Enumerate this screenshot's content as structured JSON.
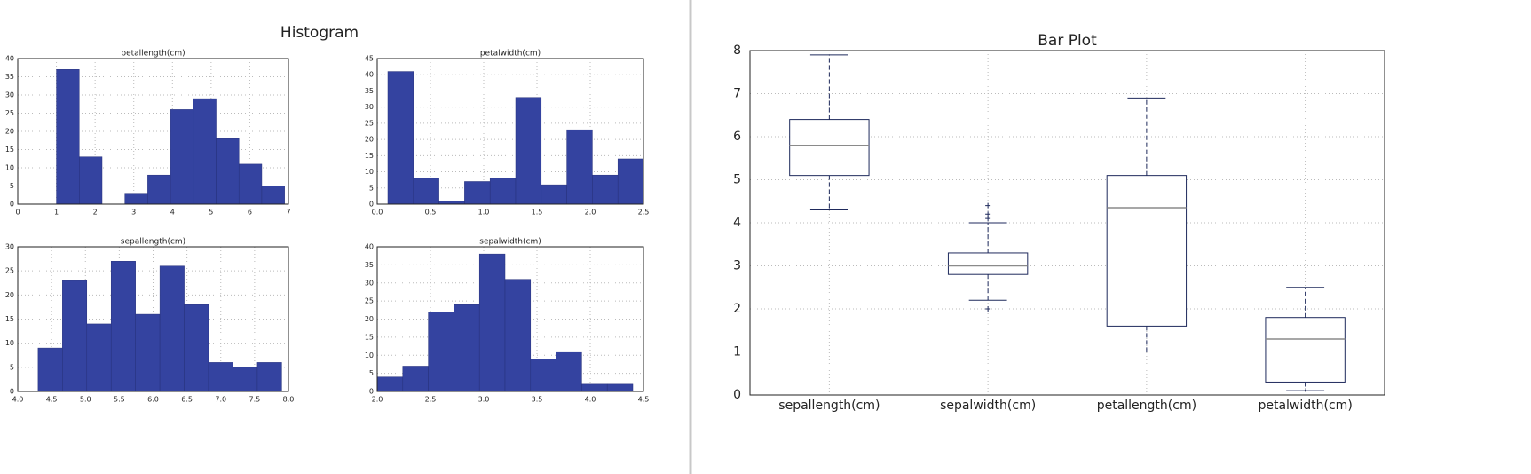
{
  "figure_title": "Histogram",
  "chart_data": [
    {
      "type": "histogram",
      "title": "petallength(cm)",
      "bins": [
        1.0,
        1.59,
        2.18,
        2.77,
        3.36,
        3.95,
        4.54,
        5.13,
        5.72,
        6.31,
        6.9
      ],
      "counts": [
        37,
        13,
        0,
        3,
        8,
        26,
        29,
        18,
        11,
        5
      ],
      "color": "#3443a0",
      "xlim": [
        0,
        7
      ],
      "xticks": [
        0,
        1,
        2,
        3,
        4,
        5,
        6,
        7
      ],
      "ylim": [
        0,
        40
      ],
      "yticks": [
        0,
        5,
        10,
        15,
        20,
        25,
        30,
        35,
        40
      ],
      "grid": true
    },
    {
      "type": "histogram",
      "title": "petalwidth(cm)",
      "bins": [
        0.1,
        0.34,
        0.58,
        0.82,
        1.06,
        1.3,
        1.54,
        1.78,
        2.02,
        2.26,
        2.5
      ],
      "counts": [
        41,
        8,
        1,
        7,
        8,
        33,
        6,
        23,
        9,
        14
      ],
      "color": "#3443a0",
      "xlim": [
        0,
        2.5
      ],
      "xticks": [
        {
          "value": 0,
          "label": "0.0"
        },
        0.5,
        {
          "value": 1,
          "label": "1.0"
        },
        1.5,
        {
          "value": 2,
          "label": "2.0"
        },
        2.5
      ],
      "ylim": [
        0,
        45
      ],
      "yticks": [
        0,
        5,
        10,
        15,
        20,
        25,
        30,
        35,
        40,
        45
      ],
      "grid": true
    },
    {
      "type": "histogram",
      "title": "sepallength(cm)",
      "bins": [
        4.3,
        4.66,
        5.02,
        5.38,
        5.74,
        6.1,
        6.46,
        6.82,
        7.18,
        7.54,
        7.9
      ],
      "counts": [
        9,
        23,
        14,
        27,
        16,
        26,
        18,
        6,
        5,
        6
      ],
      "color": "#3443a0",
      "xlim": [
        4,
        8
      ],
      "xticks": [
        {
          "value": 4,
          "label": "4.0"
        },
        4.5,
        {
          "value": 5,
          "label": "5.0"
        },
        5.5,
        {
          "value": 6,
          "label": "6.0"
        },
        6.5,
        {
          "value": 7,
          "label": "7.0"
        },
        7.5,
        {
          "value": 8,
          "label": "8.0"
        }
      ],
      "ylim": [
        0,
        30
      ],
      "yticks": [
        0,
        5,
        10,
        15,
        20,
        25,
        30
      ],
      "grid": true
    },
    {
      "type": "histogram",
      "title": "sepalwidth(cm)",
      "bins": [
        2.0,
        2.24,
        2.48,
        2.72,
        2.96,
        3.2,
        3.44,
        3.68,
        3.92,
        4.16,
        4.4
      ],
      "counts": [
        4,
        7,
        22,
        24,
        38,
        31,
        9,
        11,
        2,
        2
      ],
      "color": "#3443a0",
      "xlim": [
        2,
        4.5
      ],
      "xticks": [
        {
          "value": 2,
          "label": "2.0"
        },
        2.5,
        {
          "value": 3,
          "label": "3.0"
        },
        3.5,
        {
          "value": 4,
          "label": "4.0"
        },
        4.5
      ],
      "ylim": [
        0,
        40
      ],
      "yticks": [
        0,
        5,
        10,
        15,
        20,
        25,
        30,
        35,
        40
      ],
      "grid": true
    },
    {
      "type": "box",
      "title": "Bar Plot",
      "categories": [
        "sepallength(cm)",
        "sepalwidth(cm)",
        "petallength(cm)",
        "petalwidth(cm)"
      ],
      "stats": [
        {
          "min": 4.3,
          "q1": 5.1,
          "median": 5.8,
          "q3": 6.4,
          "max": 7.9,
          "outliers": []
        },
        {
          "min": 2.2,
          "q1": 2.8,
          "median": 3.0,
          "q3": 3.3,
          "max": 4.0,
          "outliers": [
            4.4,
            4.1,
            4.2,
            2.0
          ]
        },
        {
          "min": 1.0,
          "q1": 1.6,
          "median": 4.35,
          "q3": 5.1,
          "max": 6.9,
          "outliers": []
        },
        {
          "min": 0.1,
          "q1": 0.3,
          "median": 1.3,
          "q3": 1.8,
          "max": 2.5,
          "outliers": []
        }
      ],
      "color": "#1f2a5c",
      "median_color": "#8a8a8a",
      "ylim": [
        0,
        8
      ],
      "yticks": [
        0,
        1,
        2,
        3,
        4,
        5,
        6,
        7,
        8
      ],
      "grid": true
    }
  ]
}
